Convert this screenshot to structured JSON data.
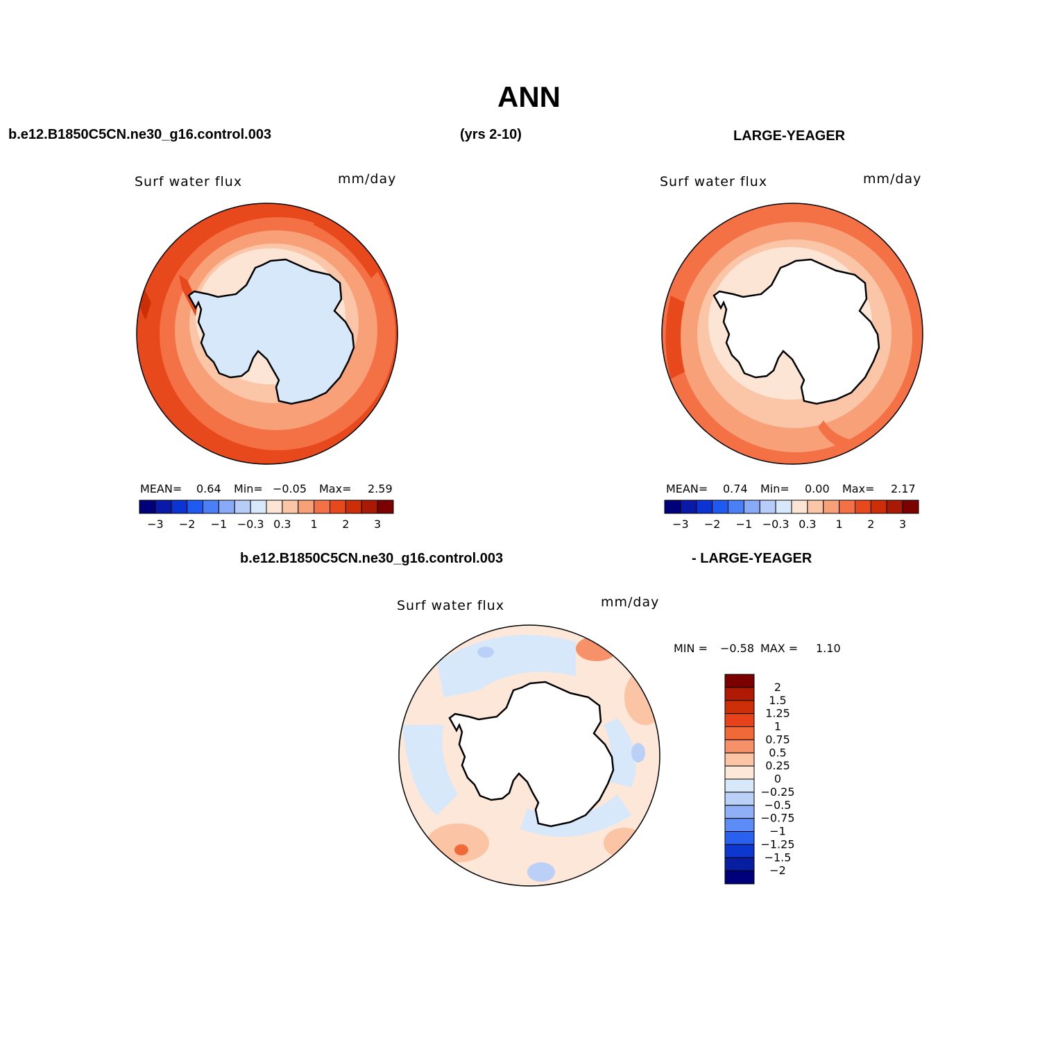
{
  "title": "ANN",
  "header": {
    "case_name": "b.e12.B1850C5CN.ne30_g16.control.003",
    "years": "(yrs 2-10)",
    "obs_name": "LARGE-YEAGER"
  },
  "diff_header": {
    "case_name": "b.e12.B1850C5CN.ne30_g16.control.003",
    "obs_name": "- LARGE-YEAGER"
  },
  "panels": [
    {
      "variable": "Surf water flux",
      "units": "mm/day",
      "mean_label": "MEAN=",
      "mean": "0.64",
      "min_label": "Min=",
      "min": "−0.05",
      "max_label": "Max=",
      "max": "2.59"
    },
    {
      "variable": "Surf water flux",
      "units": "mm/day",
      "mean_label": "MEAN=",
      "mean": "0.74",
      "min_label": "Min=",
      "min": "0.00",
      "max_label": "Max=",
      "max": "2.17"
    }
  ],
  "diff_panel": {
    "variable": "Surf water flux",
    "units": "mm/day",
    "min_label": "MIN =",
    "min": "−0.58",
    "max_label": "MAX =",
    "max": "1.10"
  },
  "colorbar_top": {
    "colors": [
      "#00007a",
      "#0a1aa8",
      "#0c34d2",
      "#1f5af0",
      "#4a80f5",
      "#88aaf7",
      "#b7cdf7",
      "#d8e8fb",
      "#fde5d5",
      "#fbc6a8",
      "#f8a078",
      "#f47045",
      "#e8491c",
      "#cc2e08",
      "#a81a04",
      "#7b0000"
    ],
    "tick_labels": [
      "−3",
      "−2",
      "−1",
      "−0.3",
      "0.3",
      "1",
      "2",
      "3"
    ]
  },
  "colorbar_diff": {
    "colors": [
      "#7b0000",
      "#b01a04",
      "#cc2e08",
      "#e8421a",
      "#f06a38",
      "#f7916a",
      "#fbc4a4",
      "#fde7d8",
      "#d8e8fb",
      "#bad0f7",
      "#8fb0f7",
      "#5c8cf5",
      "#2a60f0",
      "#0d38d0",
      "#081ea0",
      "#00007a"
    ],
    "labels": [
      "2",
      "1.5",
      "1.25",
      "1",
      "0.75",
      "0.5",
      "0.25",
      "0",
      "−0.25",
      "−0.5",
      "−0.75",
      "−1",
      "−1.25",
      "−1.5",
      "−2"
    ]
  }
}
